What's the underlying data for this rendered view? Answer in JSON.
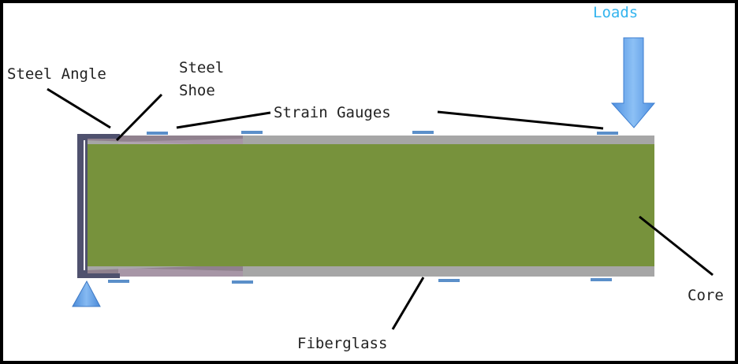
{
  "labels": {
    "loads": "Loads",
    "steel_angle": "Steel Angle",
    "steel_shoe_line1": "Steel",
    "steel_shoe_line2": "Shoe",
    "strain_gauges": "Strain Gauges",
    "fiberglass": "Fiberglass",
    "core": "Core"
  },
  "colors": {
    "core": "#77923c",
    "fiberglass": "#a6a6a6",
    "steel_angle": "#4f516e",
    "strain_gauge": "#5b8fc9",
    "load_arrow": "#5ea2e6",
    "support": "#5f9be0",
    "leader_line": "#000000"
  }
}
